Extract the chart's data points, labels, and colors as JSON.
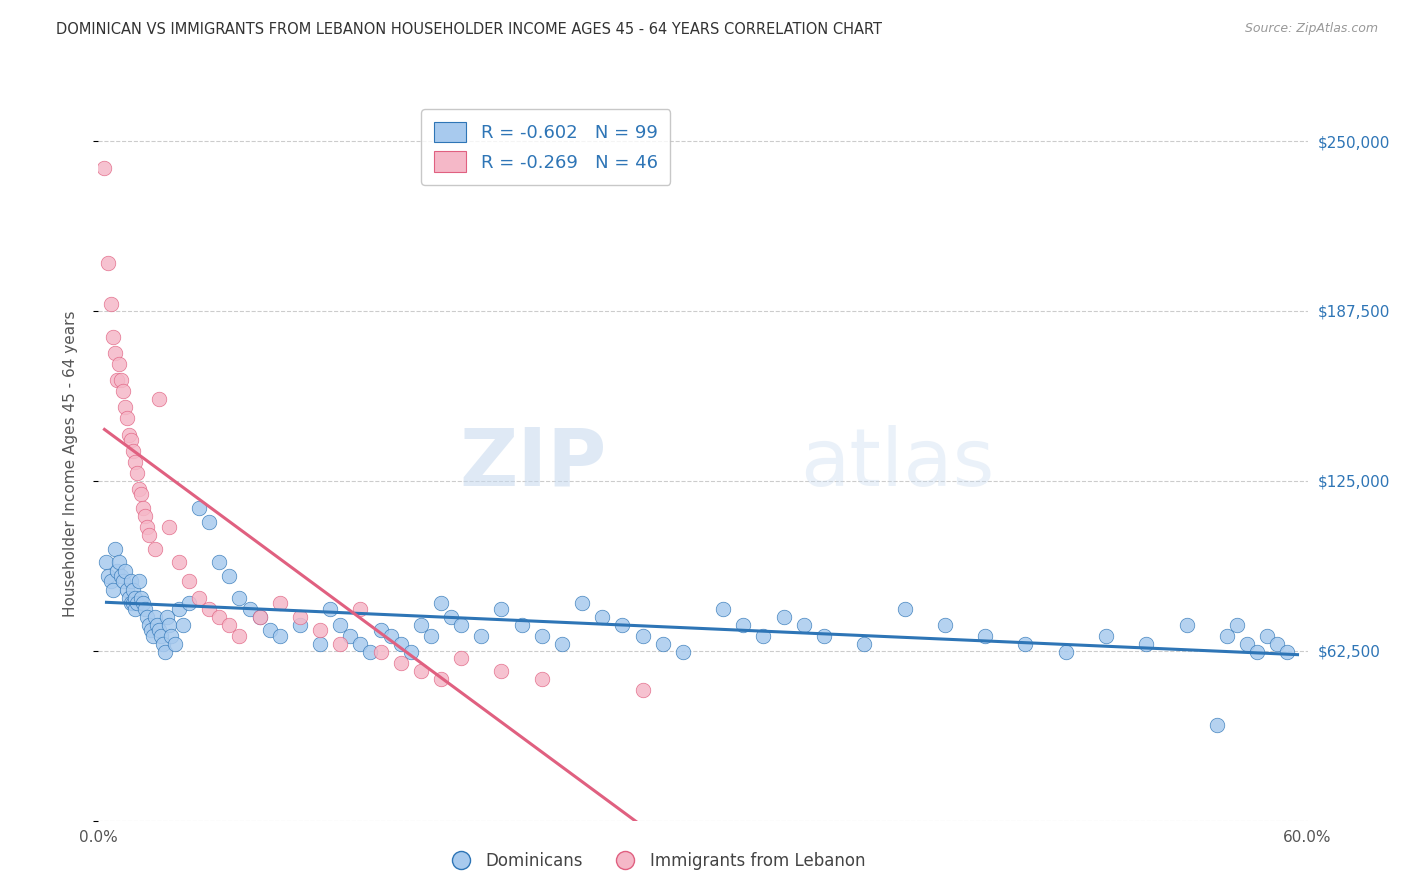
{
  "title": "DOMINICAN VS IMMIGRANTS FROM LEBANON HOUSEHOLDER INCOME AGES 45 - 64 YEARS CORRELATION CHART",
  "source": "Source: ZipAtlas.com",
  "ylabel": "Householder Income Ages 45 - 64 years",
  "watermark_zip": "ZIP",
  "watermark_atlas": "atlas",
  "xlim": [
    0.0,
    0.6
  ],
  "ylim": [
    0,
    262500
  ],
  "yticks": [
    0,
    62500,
    125000,
    187500,
    250000
  ],
  "ytick_labels_right": [
    "",
    "$62,500",
    "$125,000",
    "$187,500",
    "$250,000"
  ],
  "blue_R": -0.602,
  "blue_N": 99,
  "pink_R": -0.269,
  "pink_N": 46,
  "blue_color": "#A8CAEE",
  "pink_color": "#F5B8C8",
  "blue_line_color": "#2E75B6",
  "pink_line_color": "#E06080",
  "legend_label_blue": "Dominicans",
  "legend_label_pink": "Immigrants from Lebanon",
  "blue_x": [
    0.004,
    0.005,
    0.006,
    0.007,
    0.008,
    0.009,
    0.01,
    0.011,
    0.012,
    0.013,
    0.014,
    0.015,
    0.016,
    0.016,
    0.017,
    0.017,
    0.018,
    0.018,
    0.019,
    0.02,
    0.021,
    0.022,
    0.023,
    0.024,
    0.025,
    0.026,
    0.027,
    0.028,
    0.029,
    0.03,
    0.031,
    0.032,
    0.033,
    0.034,
    0.035,
    0.036,
    0.038,
    0.04,
    0.042,
    0.045,
    0.05,
    0.055,
    0.06,
    0.065,
    0.07,
    0.075,
    0.08,
    0.085,
    0.09,
    0.1,
    0.11,
    0.115,
    0.12,
    0.125,
    0.13,
    0.135,
    0.14,
    0.145,
    0.15,
    0.155,
    0.16,
    0.165,
    0.17,
    0.175,
    0.18,
    0.19,
    0.2,
    0.21,
    0.22,
    0.23,
    0.24,
    0.25,
    0.26,
    0.27,
    0.28,
    0.29,
    0.31,
    0.32,
    0.33,
    0.34,
    0.35,
    0.36,
    0.38,
    0.4,
    0.42,
    0.44,
    0.46,
    0.48,
    0.5,
    0.52,
    0.54,
    0.555,
    0.56,
    0.565,
    0.57,
    0.575,
    0.58,
    0.585,
    0.59
  ],
  "blue_y": [
    95000,
    90000,
    88000,
    85000,
    100000,
    92000,
    95000,
    90000,
    88000,
    92000,
    85000,
    82000,
    80000,
    88000,
    80000,
    85000,
    78000,
    82000,
    80000,
    88000,
    82000,
    80000,
    78000,
    75000,
    72000,
    70000,
    68000,
    75000,
    72000,
    70000,
    68000,
    65000,
    62000,
    75000,
    72000,
    68000,
    65000,
    78000,
    72000,
    80000,
    115000,
    110000,
    95000,
    90000,
    82000,
    78000,
    75000,
    70000,
    68000,
    72000,
    65000,
    78000,
    72000,
    68000,
    65000,
    62000,
    70000,
    68000,
    65000,
    62000,
    72000,
    68000,
    80000,
    75000,
    72000,
    68000,
    78000,
    72000,
    68000,
    65000,
    80000,
    75000,
    72000,
    68000,
    65000,
    62000,
    78000,
    72000,
    68000,
    75000,
    72000,
    68000,
    65000,
    78000,
    72000,
    68000,
    65000,
    62000,
    68000,
    65000,
    72000,
    35000,
    68000,
    72000,
    65000,
    62000,
    68000,
    65000,
    62000
  ],
  "pink_x": [
    0.003,
    0.005,
    0.006,
    0.007,
    0.008,
    0.009,
    0.01,
    0.011,
    0.012,
    0.013,
    0.014,
    0.015,
    0.016,
    0.017,
    0.018,
    0.019,
    0.02,
    0.021,
    0.022,
    0.023,
    0.024,
    0.025,
    0.028,
    0.03,
    0.035,
    0.04,
    0.045,
    0.05,
    0.055,
    0.06,
    0.065,
    0.07,
    0.08,
    0.09,
    0.1,
    0.11,
    0.12,
    0.13,
    0.14,
    0.15,
    0.16,
    0.17,
    0.18,
    0.2,
    0.22,
    0.27
  ],
  "pink_y": [
    240000,
    205000,
    190000,
    178000,
    172000,
    162000,
    168000,
    162000,
    158000,
    152000,
    148000,
    142000,
    140000,
    136000,
    132000,
    128000,
    122000,
    120000,
    115000,
    112000,
    108000,
    105000,
    100000,
    155000,
    108000,
    95000,
    88000,
    82000,
    78000,
    75000,
    72000,
    68000,
    75000,
    80000,
    75000,
    70000,
    65000,
    78000,
    62000,
    58000,
    55000,
    52000,
    60000,
    55000,
    52000,
    48000
  ]
}
